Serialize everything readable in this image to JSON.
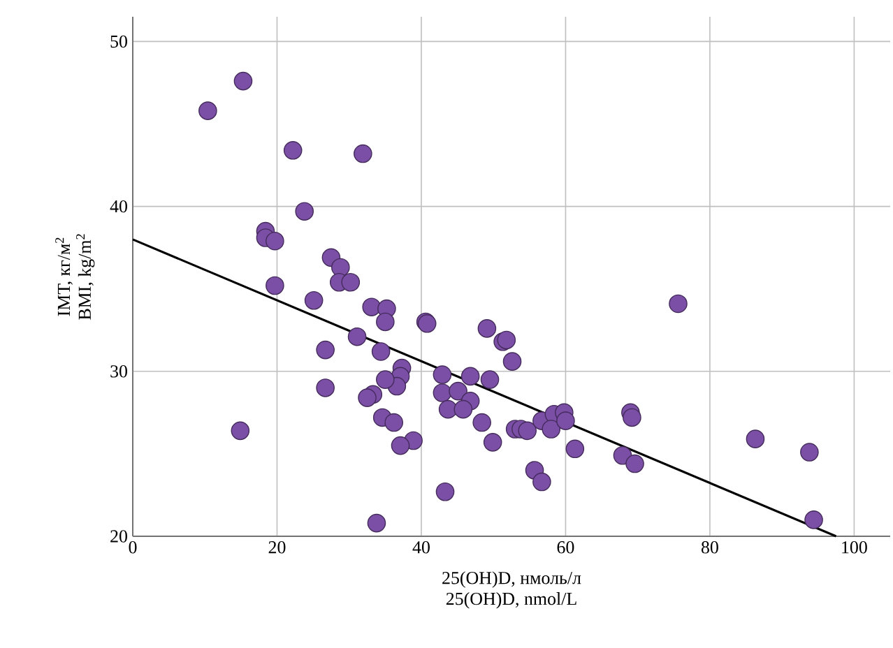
{
  "chart_data": {
    "type": "scatter",
    "xlabel": [
      "25(OH)D, нмоль/л",
      "25(OH)D, nmol/L"
    ],
    "ylabel": [
      "ІМТ, кг/м$^{2}$",
      "BMI, kg/m$^{2}$"
    ],
    "xlim": [
      0,
      105
    ],
    "ylim": [
      20,
      51.5
    ],
    "xticks": [
      0,
      20,
      40,
      60,
      80,
      100
    ],
    "yticks": [
      20,
      30,
      40,
      50
    ],
    "grid": true,
    "series": [
      {
        "color": "#7b4fa6",
        "marker": "circle",
        "x": [
          10.4,
          15.3,
          22.2,
          31.9,
          23.8,
          18.4,
          18.4,
          19.7,
          19.7,
          14.9,
          27.5,
          28.8,
          28.6,
          30.2,
          25.1,
          33.1,
          35.2,
          35.0,
          40.6,
          40.8,
          49.1,
          51.3,
          51.8,
          31.1,
          26.7,
          34.4,
          52.6,
          42.9,
          46.8,
          49.5,
          37.3,
          37.1,
          36.6,
          35.0,
          26.7,
          33.3,
          32.5,
          42.9,
          45.1,
          46.8,
          43.7,
          45.8,
          34.6,
          36.2,
          48.4,
          49.9,
          38.9,
          37.1,
          53.0,
          43.3,
          33.8,
          75.6,
          53.8,
          54.7,
          55.7,
          56.7,
          56.7,
          58.4,
          58.0,
          59.8,
          60.0,
          61.3,
          67.9,
          69.6,
          69.0,
          69.2,
          86.3,
          93.8,
          94.4
        ],
        "values": [
          45.8,
          47.6,
          43.4,
          43.2,
          39.7,
          38.5,
          38.1,
          37.9,
          35.2,
          26.4,
          36.9,
          36.3,
          35.4,
          35.4,
          34.3,
          33.9,
          33.8,
          33.0,
          33.0,
          32.9,
          32.6,
          31.8,
          31.9,
          32.1,
          31.3,
          31.2,
          30.6,
          29.8,
          29.7,
          29.5,
          30.2,
          29.7,
          29.1,
          29.5,
          29.0,
          28.6,
          28.4,
          28.7,
          28.8,
          28.2,
          27.7,
          27.7,
          27.2,
          26.9,
          26.9,
          25.7,
          25.8,
          25.5,
          26.5,
          22.7,
          20.8,
          34.1,
          26.5,
          26.4,
          24.0,
          23.3,
          27.0,
          27.4,
          26.5,
          27.5,
          27.0,
          25.3,
          24.9,
          24.4,
          27.5,
          27.2,
          25.9,
          25.1,
          21.0
        ]
      },
      {
        "type": "line",
        "color": "#000000",
        "marker": "none",
        "x": [
          0,
          97.5
        ],
        "values": [
          38.0,
          20.0
        ]
      }
    ]
  }
}
